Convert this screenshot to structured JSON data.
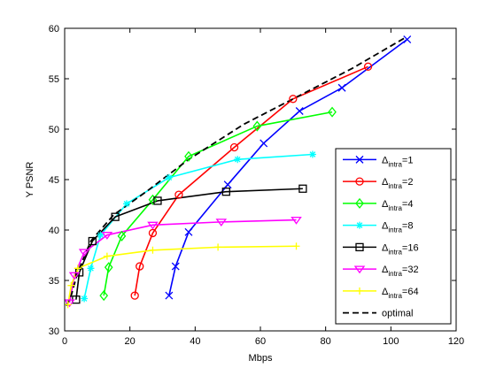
{
  "chart_data": {
    "type": "line",
    "xlabel": "Mbps",
    "ylabel": "Y PSNR",
    "xlim": [
      0,
      120
    ],
    "ylim": [
      30,
      60
    ],
    "xticks": [
      "0",
      "20",
      "40",
      "60",
      "80",
      "100",
      "120"
    ],
    "yticks": [
      "30",
      "35",
      "40",
      "45",
      "50",
      "55",
      "60"
    ],
    "grid": false,
    "legend_position": "bottom-right",
    "series": [
      {
        "label_main": "Δ",
        "label_sub": "intra",
        "label_suffix": "=1",
        "color": "#0000ff",
        "marker": "x",
        "dash": false,
        "points": [
          [
            32,
            33.5
          ],
          [
            34,
            36.4
          ],
          [
            38,
            39.8
          ],
          [
            50,
            44.5
          ],
          [
            61,
            48.6
          ],
          [
            72,
            51.8
          ],
          [
            85,
            54.1
          ],
          [
            105,
            58.9
          ]
        ]
      },
      {
        "label_main": "Δ",
        "label_sub": "intra",
        "label_suffix": "=2",
        "color": "#ff0000",
        "marker": "o",
        "dash": false,
        "points": [
          [
            21.5,
            33.5
          ],
          [
            23,
            36.4
          ],
          [
            27,
            39.7
          ],
          [
            35,
            43.5
          ],
          [
            52,
            48.2
          ],
          [
            70,
            53.0
          ],
          [
            93,
            56.2
          ]
        ]
      },
      {
        "label_main": "Δ",
        "label_sub": "intra",
        "label_suffix": "=4",
        "color": "#00ff00",
        "marker": "d",
        "dash": false,
        "points": [
          [
            12,
            33.5
          ],
          [
            13.5,
            36.3
          ],
          [
            17.5,
            39.4
          ],
          [
            27,
            43.0
          ],
          [
            38,
            47.3
          ],
          [
            59,
            50.3
          ],
          [
            82,
            51.7
          ]
        ]
      },
      {
        "label_main": "Δ",
        "label_sub": "intra",
        "label_suffix": "=8",
        "color": "#00ffff",
        "marker": "*",
        "dash": false,
        "points": [
          [
            6,
            33.2
          ],
          [
            8,
            36.2
          ],
          [
            11,
            39.5
          ],
          [
            19,
            42.6
          ],
          [
            32,
            45.2
          ],
          [
            53,
            47.0
          ],
          [
            76,
            47.5
          ]
        ]
      },
      {
        "label_main": "Δ",
        "label_sub": "intra",
        "label_suffix": "=16",
        "color": "#000000",
        "marker": "s",
        "dash": false,
        "points": [
          [
            3.5,
            33.1
          ],
          [
            4.5,
            35.8
          ],
          [
            8.5,
            38.9
          ],
          [
            15.5,
            41.3
          ],
          [
            28.5,
            42.9
          ],
          [
            49.5,
            43.8
          ],
          [
            73,
            44.1
          ]
        ]
      },
      {
        "label_main": "Δ",
        "label_sub": "intra",
        "label_suffix": "=32",
        "color": "#ff00ff",
        "marker": "v",
        "dash": false,
        "points": [
          [
            1.5,
            32.8
          ],
          [
            3,
            35.5
          ],
          [
            6,
            37.8
          ],
          [
            13,
            39.5
          ],
          [
            27,
            40.5
          ],
          [
            48,
            40.8
          ],
          [
            71,
            41.0
          ]
        ]
      },
      {
        "label_main": "Δ",
        "label_sub": "intra",
        "label_suffix": "=64",
        "color": "#ffff00",
        "marker": "+",
        "dash": false,
        "points": [
          [
            1,
            32.6
          ],
          [
            2,
            34.5
          ],
          [
            4,
            36.2
          ],
          [
            13,
            37.4
          ],
          [
            27,
            38.0
          ],
          [
            47,
            38.3
          ],
          [
            71,
            38.4
          ]
        ]
      },
      {
        "label_main": "optimal",
        "label_sub": "",
        "label_suffix": "",
        "color": "#000000",
        "marker": "none",
        "dash": true,
        "points": [
          [
            0.5,
            32.5
          ],
          [
            2,
            33.5
          ],
          [
            4,
            35.8
          ],
          [
            8,
            38.9
          ],
          [
            15,
            41.5
          ],
          [
            25,
            43.8
          ],
          [
            38,
            47.0
          ],
          [
            55,
            50.5
          ],
          [
            70,
            53.0
          ],
          [
            88,
            56.0
          ],
          [
            104,
            59.0
          ]
        ]
      }
    ]
  }
}
